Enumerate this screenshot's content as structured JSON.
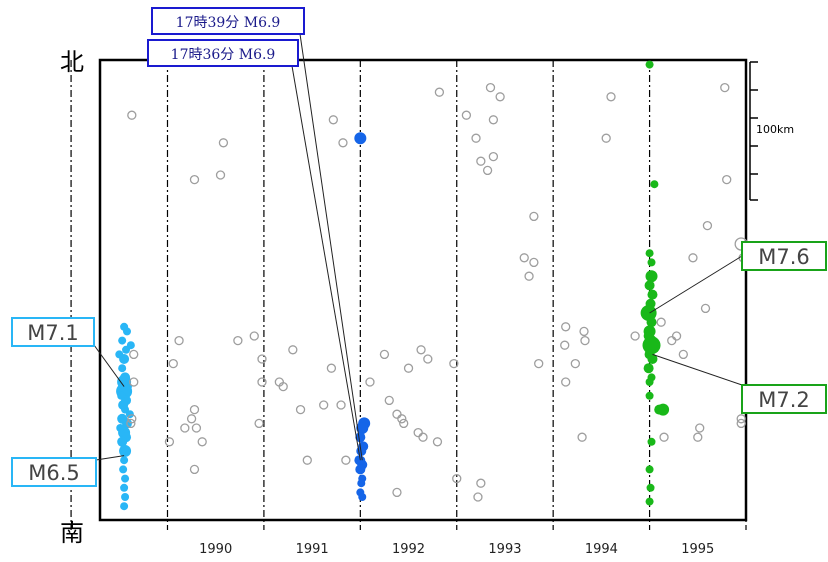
{
  "labels": {
    "north": "北",
    "south": "南",
    "scale": "100km"
  },
  "colors": {
    "eq1989": "#29b6f6",
    "eq1992": "#1565e8",
    "eq1994": "#19b819",
    "background": "#9e9e9e",
    "label1989": "#29b6f6",
    "label1992": "#1a1ad0",
    "label1994": "#19a319"
  },
  "chart_data": {
    "type": "scatter",
    "title": "",
    "xlabel": "",
    "ylabel": "",
    "x_ticks": [
      "1990",
      "1991",
      "1992",
      "1993",
      "1994",
      "1995"
    ],
    "xlim": [
      1989.3,
      1996.0
    ],
    "ylim": [
      0,
      100
    ],
    "y_axis_ends": {
      "top": "北",
      "bottom": "南"
    },
    "grid": "vertical dashed lines at year boundaries",
    "annotations": [
      {
        "text": "M7.1",
        "series": "1989",
        "x": 1989.55,
        "y": 29
      },
      {
        "text": "M6.5",
        "series": "1989",
        "x": 1989.55,
        "y": 14
      },
      {
        "text": "17時39分 M6.9",
        "series": "1992",
        "x": 1992.02,
        "y": 13
      },
      {
        "text": "17時36分 M6.9",
        "series": "1992",
        "x": 1992.0,
        "y": 13
      },
      {
        "text": "M7.6",
        "series": "1994",
        "x": 1995.0,
        "y": 45
      },
      {
        "text": "M7.2",
        "series": "1994",
        "x": 1995.03,
        "y": 36
      }
    ],
    "series": [
      {
        "key": "1989",
        "style": "filled",
        "points": [
          [
            1989.55,
            42,
            4
          ],
          [
            1989.58,
            41,
            4
          ],
          [
            1989.53,
            39,
            4
          ],
          [
            1989.57,
            37,
            4
          ],
          [
            1989.55,
            35,
            5
          ],
          [
            1989.53,
            33,
            4
          ],
          [
            1989.56,
            31,
            5
          ],
          [
            1989.55,
            30,
            7
          ],
          [
            1989.55,
            28,
            8
          ],
          [
            1989.57,
            26,
            5
          ],
          [
            1989.54,
            25,
            5
          ],
          [
            1989.56,
            24,
            4
          ],
          [
            1989.53,
            22,
            5
          ],
          [
            1989.58,
            21,
            5
          ],
          [
            1989.55,
            19,
            6
          ],
          [
            1989.57,
            18,
            5
          ],
          [
            1989.53,
            17,
            5
          ],
          [
            1989.56,
            15,
            6
          ],
          [
            1989.55,
            13,
            4
          ],
          [
            1989.54,
            11,
            4
          ],
          [
            1989.56,
            9,
            4
          ],
          [
            1989.55,
            7,
            4
          ],
          [
            1989.56,
            5,
            4
          ],
          [
            1989.55,
            3,
            4
          ],
          [
            1989.52,
            27,
            4
          ],
          [
            1989.59,
            29,
            4
          ],
          [
            1989.51,
            20,
            4
          ],
          [
            1989.61,
            23,
            4
          ],
          [
            1989.5,
            36,
            4
          ],
          [
            1989.62,
            38,
            4
          ]
        ]
      },
      {
        "key": "1992",
        "style": "filled",
        "points": [
          [
            1992.0,
            83,
            6
          ],
          [
            1992.04,
            21,
            6
          ],
          [
            1992.02,
            20,
            6
          ],
          [
            1992.0,
            18,
            5
          ],
          [
            1992.03,
            16,
            5
          ],
          [
            1992.01,
            15,
            5
          ],
          [
            1991.99,
            13,
            5
          ],
          [
            1992.02,
            12,
            5
          ],
          [
            1992.0,
            11,
            5
          ],
          [
            1992.02,
            9,
            4
          ],
          [
            1992.01,
            8,
            4
          ],
          [
            1992.0,
            6,
            4
          ],
          [
            1992.02,
            5,
            4
          ],
          [
            1992.01,
            13,
            4
          ]
        ]
      },
      {
        "key": "1994",
        "style": "filled",
        "points": [
          [
            1995.0,
            99,
            4
          ],
          [
            1995.05,
            73,
            4
          ],
          [
            1995.0,
            58,
            4
          ],
          [
            1995.02,
            53,
            6
          ],
          [
            1995.0,
            51,
            5
          ],
          [
            1995.03,
            49,
            5
          ],
          [
            1995.01,
            47,
            5
          ],
          [
            1994.99,
            45,
            8
          ],
          [
            1995.02,
            43,
            5
          ],
          [
            1995.0,
            41,
            6
          ],
          [
            1995.01,
            39,
            6
          ],
          [
            1995.02,
            38,
            9
          ],
          [
            1995.0,
            36,
            5
          ],
          [
            1995.03,
            35,
            5
          ],
          [
            1994.99,
            33,
            5
          ],
          [
            1995.02,
            31,
            4
          ],
          [
            1995.0,
            30,
            4
          ],
          [
            1995.0,
            27,
            4
          ],
          [
            1995.14,
            24,
            6
          ],
          [
            1995.1,
            24,
            5
          ],
          [
            1995.02,
            17,
            4
          ],
          [
            1995.0,
            11,
            4
          ],
          [
            1995.01,
            7,
            4
          ],
          [
            1995.0,
            4,
            4
          ],
          [
            1995.02,
            56,
            4
          ],
          [
            1994.98,
            40,
            4
          ]
        ]
      },
      {
        "key": "background",
        "style": "open",
        "points": [
          [
            1989.63,
            88,
            4
          ],
          [
            1989.65,
            36,
            4
          ],
          [
            1989.65,
            30,
            4
          ],
          [
            1989.63,
            22,
            4
          ],
          [
            1989.62,
            21,
            4
          ],
          [
            1990.28,
            74,
            4
          ],
          [
            1990.12,
            39,
            4
          ],
          [
            1990.06,
            34,
            4
          ],
          [
            1990.02,
            17,
            4
          ],
          [
            1990.18,
            20,
            4
          ],
          [
            1990.3,
            20,
            4
          ],
          [
            1990.28,
            24,
            4
          ],
          [
            1990.25,
            22,
            4
          ],
          [
            1990.36,
            17,
            4
          ],
          [
            1990.28,
            11,
            4
          ],
          [
            1990.55,
            75,
            4
          ],
          [
            1990.58,
            82,
            4
          ],
          [
            1990.9,
            40,
            4
          ],
          [
            1990.95,
            21,
            4
          ],
          [
            1990.73,
            39,
            4
          ],
          [
            1990.98,
            35,
            4
          ],
          [
            1990.98,
            30,
            4
          ],
          [
            1991.2,
            29,
            4
          ],
          [
            1991.16,
            30,
            4
          ],
          [
            1991.38,
            24,
            4
          ],
          [
            1991.45,
            13,
            4
          ],
          [
            1991.62,
            25,
            4
          ],
          [
            1991.7,
            33,
            4
          ],
          [
            1991.82,
            82,
            4
          ],
          [
            1991.72,
            87,
            4
          ],
          [
            1991.8,
            25,
            4
          ],
          [
            1991.85,
            13,
            4
          ],
          [
            1992.1,
            30,
            4
          ],
          [
            1991.3,
            37,
            4
          ],
          [
            1992.25,
            36,
            4
          ],
          [
            1992.3,
            26,
            4
          ],
          [
            1992.38,
            23,
            4
          ],
          [
            1992.43,
            22,
            4
          ],
          [
            1992.45,
            21,
            4
          ],
          [
            1992.38,
            6,
            4
          ],
          [
            1992.5,
            33,
            4
          ],
          [
            1992.63,
            37,
            4
          ],
          [
            1992.7,
            35,
            4
          ],
          [
            1992.82,
            93,
            4
          ],
          [
            1992.6,
            19,
            4
          ],
          [
            1992.65,
            18,
            4
          ],
          [
            1992.8,
            17,
            4
          ],
          [
            1992.97,
            34,
            4
          ],
          [
            1993.0,
            9,
            4
          ],
          [
            1993.1,
            88,
            4
          ],
          [
            1993.2,
            83,
            4
          ],
          [
            1993.25,
            78,
            4
          ],
          [
            1993.35,
            94,
            4
          ],
          [
            1993.45,
            92,
            4
          ],
          [
            1993.38,
            87,
            4
          ],
          [
            1993.38,
            79,
            4
          ],
          [
            1993.32,
            76,
            4
          ],
          [
            1993.25,
            8,
            4
          ],
          [
            1993.22,
            5,
            4
          ],
          [
            1993.8,
            56,
            4
          ],
          [
            1993.7,
            57,
            4
          ],
          [
            1993.75,
            53,
            4
          ],
          [
            1993.8,
            66,
            4
          ],
          [
            1993.85,
            34,
            4
          ],
          [
            1994.13,
            42,
            4
          ],
          [
            1994.12,
            38,
            4
          ],
          [
            1994.13,
            30,
            4
          ],
          [
            1994.33,
            39,
            4
          ],
          [
            1994.32,
            41,
            4
          ],
          [
            1994.23,
            34,
            4
          ],
          [
            1994.3,
            18,
            4
          ],
          [
            1994.55,
            83,
            4
          ],
          [
            1994.6,
            92,
            4
          ],
          [
            1994.85,
            40,
            4
          ],
          [
            1995.15,
            18,
            4
          ],
          [
            1995.12,
            43,
            4
          ],
          [
            1995.23,
            39,
            4
          ],
          [
            1995.28,
            40,
            4
          ],
          [
            1995.35,
            36,
            4
          ],
          [
            1995.45,
            57,
            4
          ],
          [
            1995.58,
            46,
            4
          ],
          [
            1995.6,
            64,
            4
          ],
          [
            1995.52,
            20,
            4
          ],
          [
            1995.5,
            18,
            4
          ],
          [
            1995.8,
            74,
            4
          ],
          [
            1995.78,
            94,
            4
          ],
          [
            1995.95,
            60,
            6
          ],
          [
            1995.97,
            57,
            4
          ],
          [
            1995.95,
            22,
            4
          ],
          [
            1995.95,
            21,
            4
          ]
        ]
      }
    ]
  }
}
